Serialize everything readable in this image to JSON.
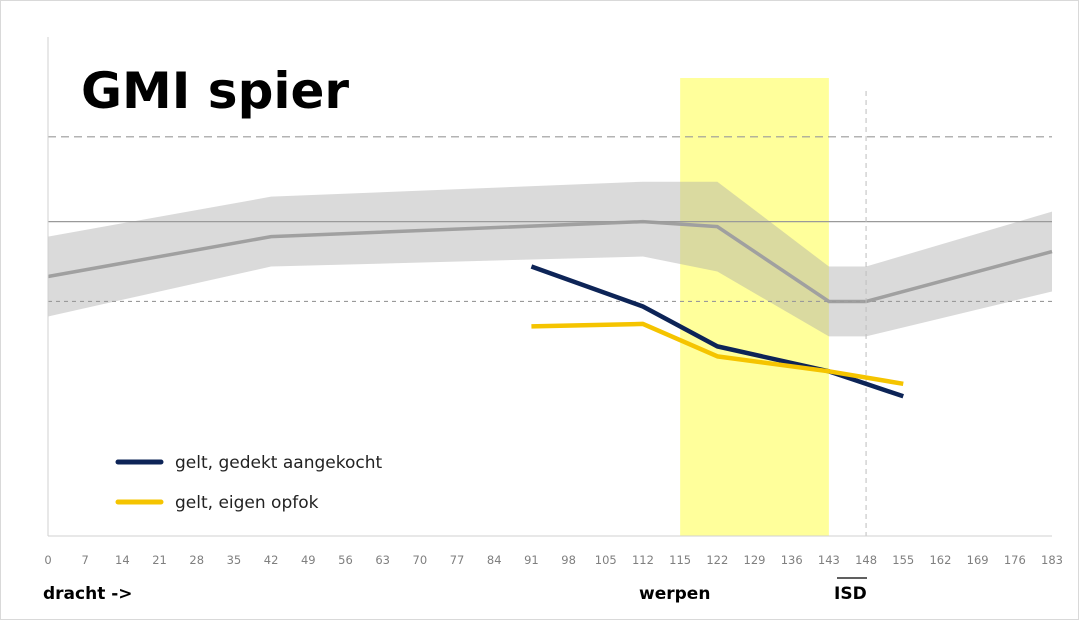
{
  "chart_data": {
    "type": "line",
    "title": "GMI spier",
    "x_ticks": [
      0,
      7,
      14,
      21,
      28,
      35,
      42,
      49,
      56,
      63,
      70,
      77,
      84,
      91,
      98,
      105,
      112,
      115,
      122,
      129,
      136,
      143,
      148,
      155,
      162,
      169,
      176,
      183
    ],
    "y_range": [
      0,
      100
    ],
    "reference_band": {
      "x": [
        0,
        42,
        112,
        122,
        143,
        148,
        183
      ],
      "center": [
        52,
        60,
        63,
        62,
        47,
        47,
        57
      ],
      "lower": [
        44,
        54,
        56,
        53,
        40,
        40,
        49
      ],
      "upper": [
        60,
        68,
        71,
        71,
        54,
        54,
        65
      ]
    },
    "reference_lines": {
      "solid": 63,
      "dashed_upper": 80,
      "dashed_lower": 47
    },
    "highlight_region": {
      "x_start": 115,
      "x_end": 143,
      "color": "#ffff66"
    },
    "vertical_dashed_line": {
      "x": 148
    },
    "series": [
      {
        "name": "gelt, gedekt aangekocht",
        "color": "#0d2457",
        "x": [
          91,
          112,
          122,
          143,
          155
        ],
        "y": [
          54,
          46,
          38,
          33,
          28
        ]
      },
      {
        "name": "gelt, eigen opfok",
        "color": "#f5c400",
        "x": [
          91,
          112,
          122,
          143,
          155
        ],
        "y": [
          42,
          42.5,
          36,
          33,
          30.5
        ]
      }
    ],
    "legend_position": "bottom-left",
    "annotations": {
      "dracht": "dracht ->",
      "werpen": "werpen",
      "isd": "ISD"
    },
    "grid": false
  }
}
